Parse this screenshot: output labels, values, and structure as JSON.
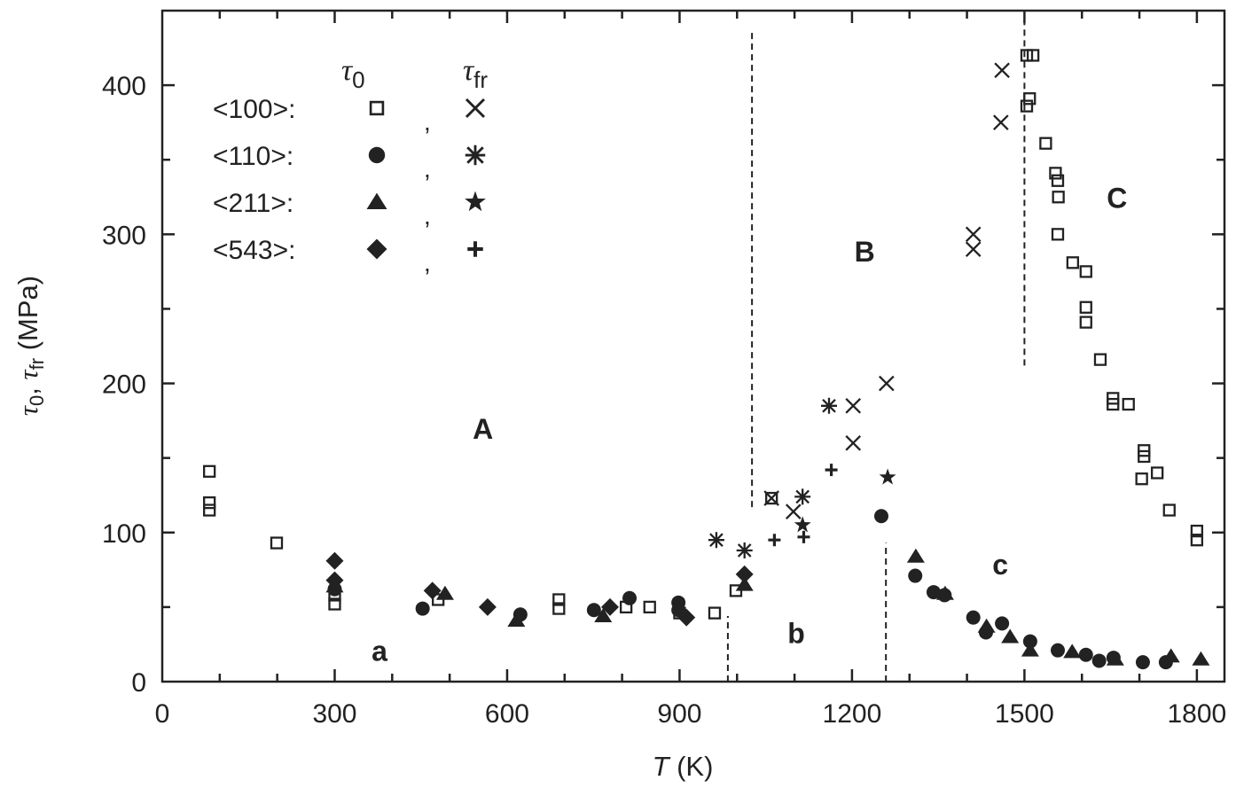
{
  "chart_data": {
    "type": "scatter",
    "xlabel": {
      "italic": "T",
      "rest": " (K)"
    },
    "ylabel": {
      "parts": [
        "τ",
        "0",
        ", ",
        "τ",
        "fr",
        " (MPa)"
      ]
    },
    "xlim": [
      0,
      1848
    ],
    "ylim": [
      0,
      450
    ],
    "xticks": [
      0,
      300,
      600,
      900,
      1200,
      1500,
      1800
    ],
    "yticks": [
      0,
      100,
      200,
      300,
      400
    ],
    "grid": false,
    "legend": {
      "placement": "top-left",
      "header_tau0": {
        "sym": "τ",
        "sub": "0"
      },
      "header_taufr": {
        "sym": "τ",
        "sub": "fr"
      },
      "rows": [
        {
          "label": "<100>:",
          "tau0_marker": "open-square",
          "taufr_marker": "x-cross"
        },
        {
          "label": "<110>:",
          "tau0_marker": "filled-circle",
          "taufr_marker": "asterisk"
        },
        {
          "label": "<211>:",
          "tau0_marker": "filled-triangle",
          "taufr_marker": "filled-star"
        },
        {
          "label": "<543>:",
          "tau0_marker": "filled-diamond",
          "taufr_marker": "plus"
        }
      ],
      "separator": ","
    },
    "series": [
      {
        "name": "<100> τ0",
        "marker": "open-square",
        "points": [
          [
            82,
            141
          ],
          [
            82,
            120
          ],
          [
            82,
            115
          ],
          [
            199,
            93
          ],
          [
            300,
            58
          ],
          [
            300,
            52
          ],
          [
            480,
            55
          ],
          [
            690,
            55
          ],
          [
            690,
            49
          ],
          [
            807,
            50
          ],
          [
            848,
            50
          ],
          [
            900,
            46
          ],
          [
            961,
            46
          ],
          [
            998,
            61
          ],
          [
            1060,
            123
          ],
          [
            1504,
            420
          ],
          [
            1515,
            420
          ],
          [
            1509,
            391
          ],
          [
            1504,
            386
          ],
          [
            1537,
            361
          ],
          [
            1554,
            341
          ],
          [
            1558,
            336
          ],
          [
            1559,
            325
          ],
          [
            1558,
            300
          ],
          [
            1584,
            281
          ],
          [
            1607,
            275
          ],
          [
            1607,
            251
          ],
          [
            1607,
            241
          ],
          [
            1632,
            216
          ],
          [
            1654,
            190
          ],
          [
            1654,
            186
          ],
          [
            1681,
            186
          ],
          [
            1708,
            155
          ],
          [
            1708,
            151
          ],
          [
            1704,
            136
          ],
          [
            1731,
            140
          ],
          [
            1752,
            115
          ],
          [
            1800,
            101
          ],
          [
            1800,
            95
          ]
        ]
      },
      {
        "name": "<110> τ0",
        "marker": "filled-circle",
        "points": [
          [
            300,
            62
          ],
          [
            453,
            49
          ],
          [
            623,
            45
          ],
          [
            751,
            48
          ],
          [
            813,
            56
          ],
          [
            898,
            53
          ],
          [
            898,
            48
          ],
          [
            1251,
            111
          ],
          [
            1310,
            71
          ],
          [
            1342,
            60
          ],
          [
            1361,
            58
          ],
          [
            1411,
            43
          ],
          [
            1433,
            33
          ],
          [
            1461,
            39
          ],
          [
            1510,
            27
          ],
          [
            1558,
            21
          ],
          [
            1607,
            18
          ],
          [
            1630,
            14
          ],
          [
            1655,
            16
          ],
          [
            1706,
            13
          ],
          [
            1746,
            13
          ]
        ]
      },
      {
        "name": "<211> τ0",
        "marker": "filled-triangle",
        "points": [
          [
            300,
            64
          ],
          [
            492,
            59
          ],
          [
            616,
            41
          ],
          [
            767,
            44
          ],
          [
            1013,
            65
          ],
          [
            1311,
            84
          ],
          [
            1362,
            59
          ],
          [
            1434,
            37
          ],
          [
            1475,
            30
          ],
          [
            1510,
            21
          ],
          [
            1583,
            20
          ],
          [
            1658,
            15
          ],
          [
            1755,
            17
          ],
          [
            1807,
            15
          ]
        ]
      },
      {
        "name": "<543> τ0",
        "marker": "filled-diamond",
        "points": [
          [
            300,
            81
          ],
          [
            300,
            68
          ],
          [
            470,
            61
          ],
          [
            566,
            50
          ],
          [
            779,
            50
          ],
          [
            912,
            43
          ],
          [
            1013,
            72
          ]
        ]
      },
      {
        "name": "<100> τfr",
        "marker": "x-cross",
        "points": [
          [
            1060,
            123
          ],
          [
            1098,
            114
          ],
          [
            1202,
            185
          ],
          [
            1202,
            160
          ],
          [
            1260,
            200
          ],
          [
            1411,
            300
          ],
          [
            1411,
            290
          ],
          [
            1459,
            375
          ],
          [
            1461,
            410
          ]
        ]
      },
      {
        "name": "<110> τfr",
        "marker": "asterisk",
        "points": [
          [
            964,
            95
          ],
          [
            1013,
            88
          ],
          [
            1114,
            124
          ],
          [
            1160,
            185
          ]
        ]
      },
      {
        "name": "<211> τfr",
        "marker": "filled-star",
        "points": [
          [
            1114,
            105
          ],
          [
            1262,
            137
          ]
        ]
      },
      {
        "name": "<543> τfr",
        "marker": "plus",
        "points": [
          [
            1065,
            95
          ],
          [
            1116,
            97
          ],
          [
            1164,
            142
          ]
        ]
      }
    ],
    "dashed_lines": [
      {
        "x": 1026,
        "y": [
          117,
          438
        ]
      },
      {
        "x": 984,
        "y": [
          0,
          44
        ]
      },
      {
        "x": 1259,
        "y": [
          0,
          93
        ]
      },
      {
        "x": 1500,
        "y": [
          212,
          444
        ]
      }
    ],
    "annotations": [
      {
        "text": "A",
        "x": 558,
        "y": 170
      },
      {
        "text": "B",
        "x": 1222,
        "y": 289
      },
      {
        "text": "C",
        "x": 1661,
        "y": 325
      },
      {
        "text": "a",
        "x": 378,
        "y": 21
      },
      {
        "text": "b",
        "x": 1103,
        "y": 33
      },
      {
        "text": "c",
        "x": 1458,
        "y": 79
      }
    ],
    "color": "#222222"
  }
}
